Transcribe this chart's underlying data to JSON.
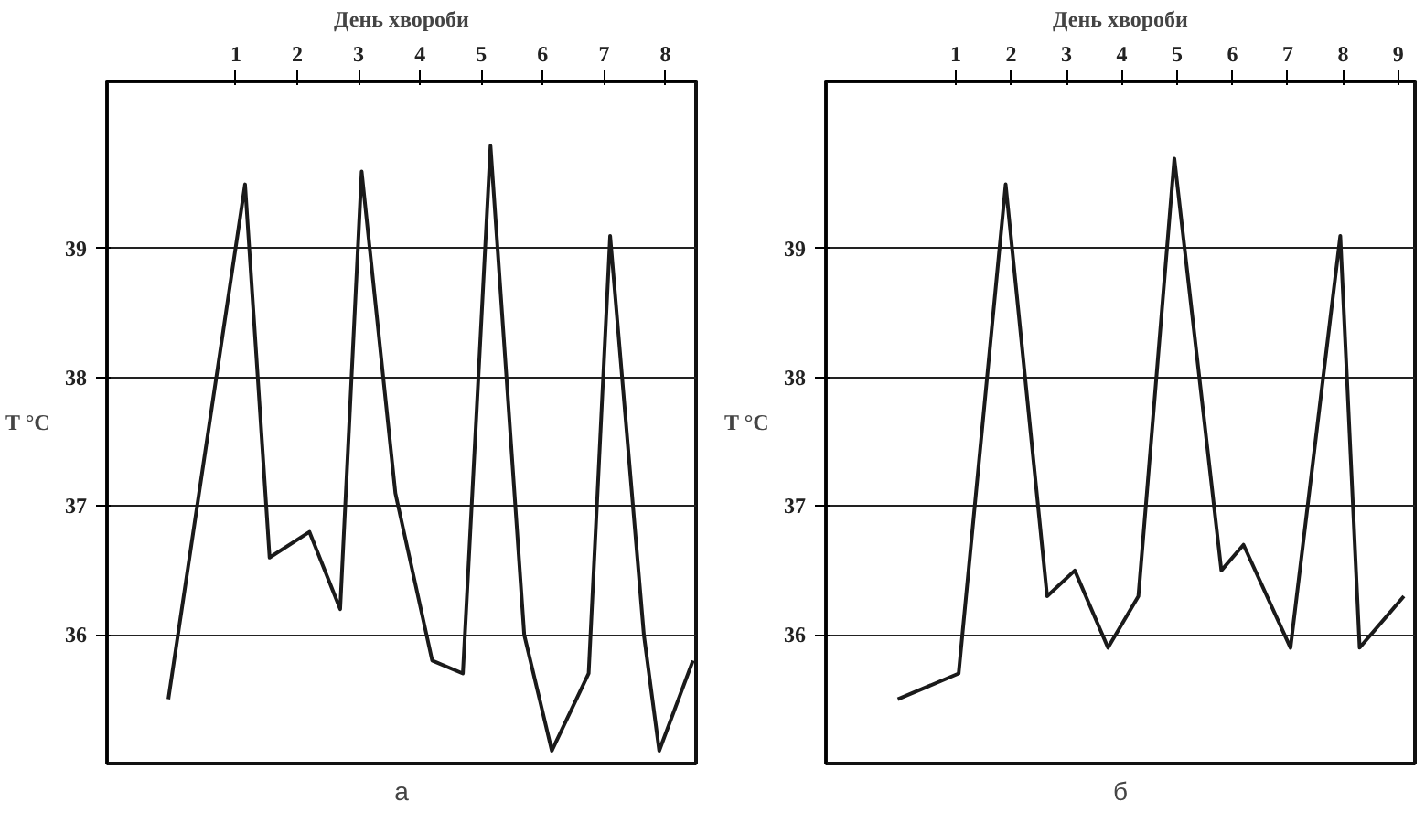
{
  "chart_data": [
    {
      "type": "line",
      "title": "а",
      "xlabel": "День хвороби",
      "ylabel": "T °C",
      "color": "#1a1a1a",
      "grid": "y",
      "marker": "none",
      "line_style": "solid",
      "xlim": [
        -1.6,
        8
      ],
      "ylim": [
        35,
        40.3
      ],
      "yticks": [
        36,
        37,
        38,
        39
      ],
      "xticks": [
        {
          "value": 0.5,
          "label": "1"
        },
        {
          "value": 1.5,
          "label": "2"
        },
        {
          "value": 2.5,
          "label": "3"
        },
        {
          "value": 3.5,
          "label": "4"
        },
        {
          "value": 4.5,
          "label": "5"
        },
        {
          "value": 5.5,
          "label": "6"
        },
        {
          "value": 6.5,
          "label": "7"
        },
        {
          "value": 7.5,
          "label": "8"
        }
      ],
      "x": [
        -0.6,
        0.65,
        1.05,
        1.7,
        2.2,
        2.55,
        3.1,
        3.7,
        4.2,
        4.65,
        5.2,
        5.65,
        6.25,
        6.6,
        7.15,
        7.4,
        7.95
      ],
      "values": [
        35.5,
        39.5,
        36.6,
        36.8,
        36.2,
        39.6,
        37.1,
        35.8,
        35.7,
        39.8,
        36.0,
        35.1,
        35.7,
        39.1,
        36.0,
        35.1,
        35.8
      ]
    },
    {
      "type": "line",
      "title": "б",
      "xlabel": "День хвороби",
      "ylabel": "T °C",
      "color": "#1a1a1a",
      "grid": "y",
      "marker": "none",
      "line_style": "solid",
      "xlim": [
        -1.85,
        8.8
      ],
      "ylim": [
        35,
        40.3
      ],
      "yticks": [
        36,
        37,
        38,
        39
      ],
      "xticks": [
        {
          "value": 0.5,
          "label": "1"
        },
        {
          "value": 1.5,
          "label": "2"
        },
        {
          "value": 2.5,
          "label": "3"
        },
        {
          "value": 3.5,
          "label": "4"
        },
        {
          "value": 4.5,
          "label": "5"
        },
        {
          "value": 5.5,
          "label": "6"
        },
        {
          "value": 6.5,
          "label": "7"
        },
        {
          "value": 7.5,
          "label": "8"
        },
        {
          "value": 8.5,
          "label": "9"
        }
      ],
      "x": [
        -0.55,
        0.55,
        1.4,
        2.15,
        2.65,
        3.25,
        3.8,
        4.45,
        5.3,
        5.7,
        6.55,
        7.45,
        7.8,
        8.6
      ],
      "values": [
        35.5,
        35.7,
        39.5,
        36.3,
        36.5,
        35.9,
        36.3,
        39.7,
        36.5,
        36.7,
        35.9,
        39.1,
        35.9,
        36.3
      ]
    }
  ]
}
